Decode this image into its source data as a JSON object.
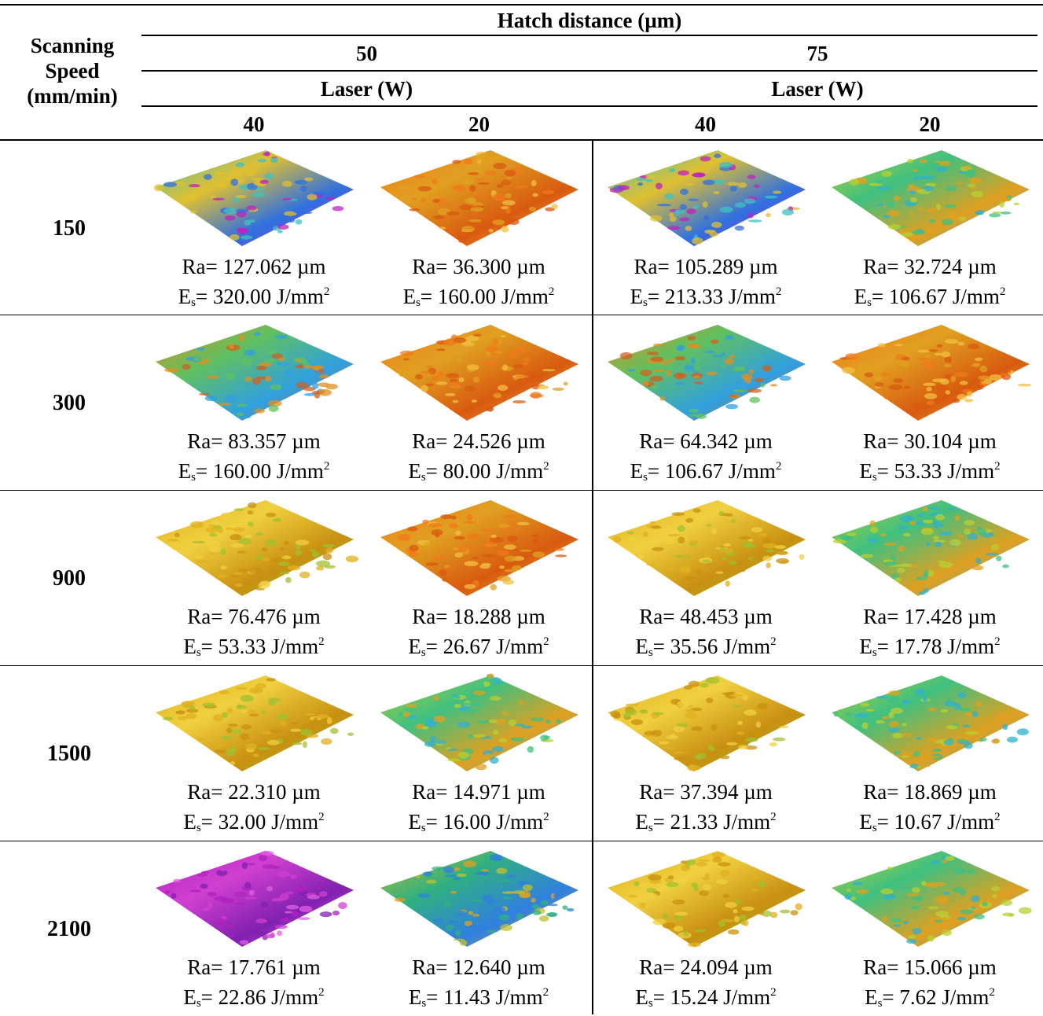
{
  "header": {
    "row_label_line1": "Scanning",
    "row_label_line2": "Speed",
    "row_label_line3": "(mm/min)",
    "hatch_title": "Hatch distance (µm)",
    "hatch_values": [
      "50",
      "75"
    ],
    "laser_title": "Laser (W)",
    "laser_values": [
      "40",
      "20",
      "40",
      "20"
    ]
  },
  "rows": [
    {
      "speed": "150",
      "cells": [
        {
          "ra": "Ra= 127.062 µm",
          "es": "= 320.00 J/mm",
          "palette": "high"
        },
        {
          "ra": "Ra= 36.300 µm",
          "es": "= 160.00 J/mm",
          "palette": "orange"
        },
        {
          "ra": "Ra= 105.289 µm",
          "es": "= 213.33 J/mm",
          "palette": "high"
        },
        {
          "ra": "Ra= 32.724 µm",
          "es": "= 106.67 J/mm",
          "palette": "green"
        }
      ]
    },
    {
      "speed": "300",
      "cells": [
        {
          "ra": "Ra= 83.357 µm",
          "es": "= 160.00 J/mm",
          "palette": "mixed"
        },
        {
          "ra": "Ra= 24.526 µm",
          "es": "= 80.00 J/mm",
          "palette": "orange"
        },
        {
          "ra": "Ra= 64.342 µm",
          "es": "= 106.67 J/mm",
          "palette": "mixed"
        },
        {
          "ra": "Ra= 30.104 µm",
          "es": "= 53.33 J/mm",
          "palette": "orange"
        }
      ]
    },
    {
      "speed": "900",
      "cells": [
        {
          "ra": "Ra= 76.476 µm",
          "es": "= 53.33 J/mm",
          "palette": "yellow"
        },
        {
          "ra": "Ra= 18.288 µm",
          "es": "= 26.67 J/mm",
          "palette": "orange"
        },
        {
          "ra": "Ra= 48.453 µm",
          "es": "= 35.56 J/mm",
          "palette": "yellow"
        },
        {
          "ra": "Ra= 17.428 µm",
          "es": "= 17.78 J/mm",
          "palette": "green"
        }
      ]
    },
    {
      "speed": "1500",
      "cells": [
        {
          "ra": "Ra= 22.310 µm",
          "es": "= 32.00 J/mm",
          "palette": "yellow"
        },
        {
          "ra": "Ra= 14.971 µm",
          "es": "= 16.00 J/mm",
          "palette": "green"
        },
        {
          "ra": "Ra= 37.394 µm",
          "es": "= 21.33 J/mm",
          "palette": "yellow"
        },
        {
          "ra": "Ra= 18.869 µm",
          "es": "= 10.67 J/mm",
          "palette": "green"
        }
      ]
    },
    {
      "speed": "2100",
      "cells": [
        {
          "ra": "Ra= 17.761 µm",
          "es": "= 22.86 J/mm",
          "palette": "magenta"
        },
        {
          "ra": "Ra= 12.640 µm",
          "es": "= 11.43 J/mm",
          "palette": "bluegreen"
        },
        {
          "ra": "Ra= 24.094 µm",
          "es": "= 15.24 J/mm",
          "palette": "yellow"
        },
        {
          "ra": "Ra= 15.066 µm",
          "es": "= 7.62 J/mm",
          "palette": "green"
        }
      ]
    }
  ],
  "es_symbol": "E",
  "es_subscript": "s",
  "es_superscript": "2",
  "palettes": {
    "orange": [
      "#f07a1a",
      "#e0a020",
      "#d85a10",
      "#f0c040"
    ],
    "green": [
      "#b8d030",
      "#40c080",
      "#e0a020",
      "#30b0d0"
    ],
    "yellow": [
      "#e0b020",
      "#f0d040",
      "#c89010",
      "#a0c030"
    ],
    "mixed": [
      "#e09020",
      "#60c060",
      "#30a0e0",
      "#d06020"
    ],
    "high": [
      "#40c0c0",
      "#e0c030",
      "#3070e0",
      "#c020c0"
    ],
    "magenta": [
      "#b020c0",
      "#d040d0",
      "#8020b0",
      "#e060e0"
    ],
    "bluegreen": [
      "#c0c030",
      "#30b080",
      "#3080e0",
      "#e0a020"
    ]
  }
}
